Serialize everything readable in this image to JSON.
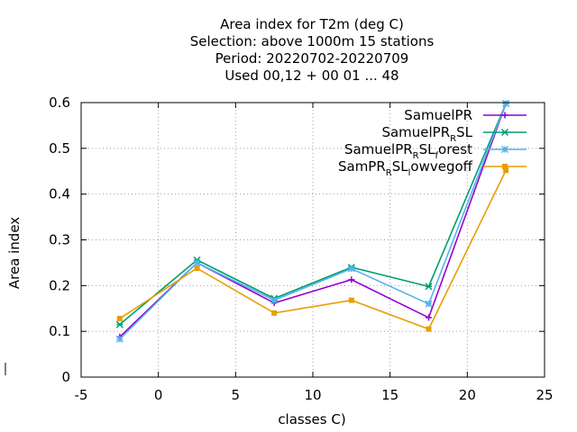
{
  "chart_data": {
    "type": "line",
    "title_lines": [
      "Area index  for T2m (deg C)",
      "Selection: above 1000m      15 stations",
      "Period: 20220702-20220709",
      "Used  00,12  + 00 01 ... 48"
    ],
    "xlabel": "classes C)",
    "ylabel": "Area index",
    "xlim": [
      -5,
      25
    ],
    "ylim": [
      0,
      0.6
    ],
    "xticks": [
      "-5",
      "0",
      "5",
      "10",
      "15",
      "20",
      "25"
    ],
    "yticks": [
      "0",
      "0.1",
      "0.2",
      "0.3",
      "0.4",
      "0.5",
      "0.6"
    ],
    "grid": true,
    "legend_position": "top-right",
    "x": [
      -2.5,
      2.5,
      7.5,
      12.5,
      17.5,
      22.5
    ],
    "series": [
      {
        "name": "SamuelPR",
        "legend_parts": [
          "SamuelPR"
        ],
        "color": "#9400d3",
        "marker": "plus",
        "values": [
          0.088,
          0.25,
          0.162,
          0.213,
          0.13,
          0.598
        ]
      },
      {
        "name": "SamuelPR_R SL",
        "legend_parts": [
          "SamuelPR",
          "R",
          "SL"
        ],
        "color": "#009e73",
        "marker": "x",
        "values": [
          0.115,
          0.256,
          0.172,
          0.24,
          0.198,
          0.598
        ]
      },
      {
        "name": "SamuelPR_R SL_f orest",
        "legend_parts": [
          "SamuelPR",
          "R",
          "SL",
          "f",
          "orest"
        ],
        "color": "#56b4e9",
        "marker": "star",
        "values": [
          0.083,
          0.25,
          0.168,
          0.237,
          0.16,
          0.598
        ]
      },
      {
        "name": "SamPR_R SL_l owvegoff",
        "legend_parts": [
          "SamPR",
          "R",
          "SL",
          "l",
          "owvegoff"
        ],
        "color": "#e69f00",
        "marker": "square",
        "values": [
          0.128,
          0.238,
          0.14,
          0.168,
          0.105,
          0.452
        ]
      }
    ]
  }
}
